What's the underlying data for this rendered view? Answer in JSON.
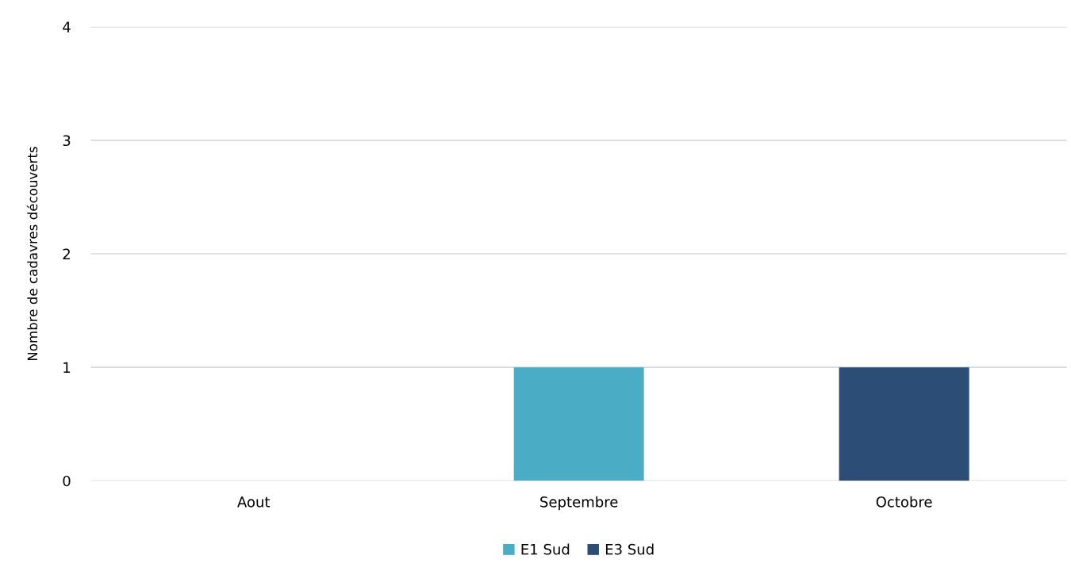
{
  "chart_data": {
    "type": "bar",
    "stacked": true,
    "ylabel": "Nombre de cadavres découverts",
    "categories": [
      "Aout",
      "Septembre",
      "Octobre"
    ],
    "series": [
      {
        "name": "E1 Sud",
        "color": "#4bacc6",
        "values": [
          0,
          1,
          0
        ]
      },
      {
        "name": "E3 Sud",
        "color": "#2c4d75",
        "values": [
          0,
          0,
          1
        ]
      }
    ],
    "ylim": [
      0,
      4
    ],
    "yticks": [
      0,
      1,
      2,
      3,
      4
    ],
    "grid": "y",
    "legend": "bottom"
  }
}
